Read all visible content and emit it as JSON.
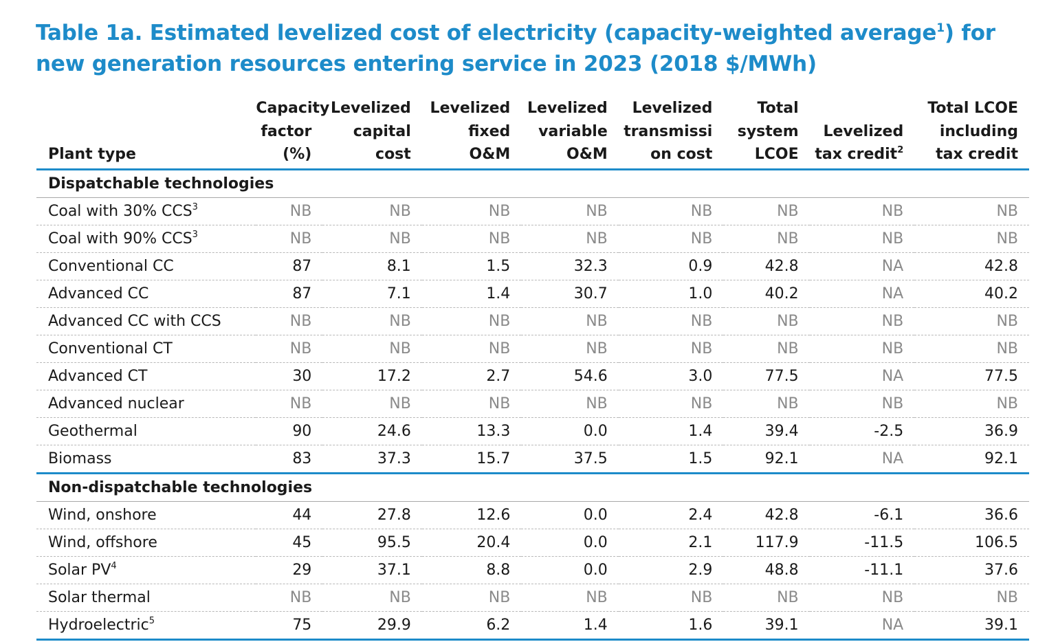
{
  "title": {
    "text_before_sup": "Table 1a. Estimated levelized cost of electricity (capacity-weighted average",
    "sup": "1",
    "text_after_sup": ") for new generation resources entering service in 2023 (2018 $/MWh)"
  },
  "colors": {
    "accent": "#1d8bc9",
    "muted_text": "#8a8a8a"
  },
  "headers": [
    {
      "text": "Plant type",
      "sup": ""
    },
    {
      "text": "Capacity factor (%)",
      "sup": ""
    },
    {
      "text": "Levelized capital cost",
      "sup": ""
    },
    {
      "text": "Levelized fixed O&M",
      "sup": ""
    },
    {
      "text": "Levelized variable O&M",
      "sup": ""
    },
    {
      "text": "Levelized transmissi on cost",
      "sup": ""
    },
    {
      "text": "Total system LCOE",
      "sup": ""
    },
    {
      "text": "Levelized tax credit",
      "sup": "2"
    },
    {
      "text": "Total LCOE including tax credit",
      "sup": ""
    }
  ],
  "sections": [
    {
      "label": "Dispatchable technologies",
      "rows": [
        {
          "plant": "Coal with 30% CCS",
          "sup": "3",
          "values": [
            "NB",
            "NB",
            "NB",
            "NB",
            "NB",
            "NB",
            "NB",
            "NB"
          ]
        },
        {
          "plant": "Coal with 90% CCS",
          "sup": "3",
          "values": [
            "NB",
            "NB",
            "NB",
            "NB",
            "NB",
            "NB",
            "NB",
            "NB"
          ]
        },
        {
          "plant": "Conventional CC",
          "sup": "",
          "values": [
            "87",
            "8.1",
            "1.5",
            "32.3",
            "0.9",
            "42.8",
            "NA",
            "42.8"
          ]
        },
        {
          "plant": "Advanced CC",
          "sup": "",
          "values": [
            "87",
            "7.1",
            "1.4",
            "30.7",
            "1.0",
            "40.2",
            "NA",
            "40.2"
          ]
        },
        {
          "plant": "Advanced CC with CCS",
          "sup": "",
          "values": [
            "NB",
            "NB",
            "NB",
            "NB",
            "NB",
            "NB",
            "NB",
            "NB"
          ]
        },
        {
          "plant": "Conventional CT",
          "sup": "",
          "values": [
            "NB",
            "NB",
            "NB",
            "NB",
            "NB",
            "NB",
            "NB",
            "NB"
          ]
        },
        {
          "plant": "Advanced CT",
          "sup": "",
          "values": [
            "30",
            "17.2",
            "2.7",
            "54.6",
            "3.0",
            "77.5",
            "NA",
            "77.5"
          ]
        },
        {
          "plant": "Advanced nuclear",
          "sup": "",
          "values": [
            "NB",
            "NB",
            "NB",
            "NB",
            "NB",
            "NB",
            "NB",
            "NB"
          ]
        },
        {
          "plant": "Geothermal",
          "sup": "",
          "values": [
            "90",
            "24.6",
            "13.3",
            "0.0",
            "1.4",
            "39.4",
            "-2.5",
            "36.9"
          ]
        },
        {
          "plant": "Biomass",
          "sup": "",
          "values": [
            "83",
            "37.3",
            "15.7",
            "37.5",
            "1.5",
            "92.1",
            "NA",
            "92.1"
          ]
        }
      ]
    },
    {
      "label": "Non-dispatchable technologies",
      "rows": [
        {
          "plant": "Wind, onshore",
          "sup": "",
          "values": [
            "44",
            "27.8",
            "12.6",
            "0.0",
            "2.4",
            "42.8",
            "-6.1",
            "36.6"
          ]
        },
        {
          "plant": "Wind, offshore",
          "sup": "",
          "values": [
            "45",
            "95.5",
            "20.4",
            "0.0",
            "2.1",
            "117.9",
            "-11.5",
            "106.5"
          ]
        },
        {
          "plant": "Solar PV",
          "sup": "4",
          "values": [
            "29",
            "37.1",
            "8.8",
            "0.0",
            "2.9",
            "48.8",
            "-11.1",
            "37.6"
          ]
        },
        {
          "plant": "Solar thermal",
          "sup": "",
          "values": [
            "NB",
            "NB",
            "NB",
            "NB",
            "NB",
            "NB",
            "NB",
            "NB"
          ]
        },
        {
          "plant": "Hydroelectric",
          "sup": "5",
          "values": [
            "75",
            "29.9",
            "6.2",
            "1.4",
            "1.6",
            "39.1",
            "NA",
            "39.1"
          ]
        }
      ]
    }
  ]
}
